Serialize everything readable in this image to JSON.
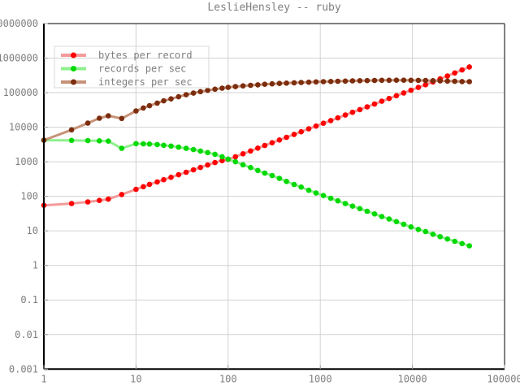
{
  "title": "LeslieHensley -- ruby",
  "background_color": "#ffffff",
  "text_color": "#7f7f7f",
  "grid_color": "#d2d2d2",
  "border_color": "#000000",
  "legend_border_color": "#d8d8d8",
  "chart_data": {
    "type": "line",
    "title": "LeslieHensley -- ruby",
    "x_scale": "log",
    "y_scale": "log",
    "xlim": [
      1,
      100000
    ],
    "ylim": [
      0.001,
      10000000
    ],
    "grid": true,
    "legend_position": "top-left",
    "x_ticks": {
      "values": [
        1,
        10,
        100,
        1000,
        10000,
        100000
      ],
      "labels": [
        "1",
        "10",
        "100",
        "1000",
        "10000",
        "100000"
      ]
    },
    "y_ticks": {
      "values": [
        0.001,
        0.01,
        0.1,
        1,
        10,
        100,
        1000,
        10000,
        100000,
        1000000,
        10000000
      ],
      "labels": [
        "0.001",
        "0.01",
        "0.1",
        "1",
        "10",
        "100",
        "1000",
        "10000",
        "100000",
        "1000000",
        "10000000"
      ]
    },
    "x": [
      1,
      2,
      3,
      4,
      5,
      7,
      10,
      12,
      14,
      17,
      20,
      24,
      29,
      35,
      42,
      50,
      60,
      72,
      86,
      100,
      120,
      145,
      175,
      210,
      250,
      300,
      360,
      430,
      520,
      620,
      750,
      900,
      1080,
      1300,
      1550,
      1870,
      2240,
      2690,
      3230,
      3880,
      4650,
      5580,
      6700,
      8040,
      9650,
      11600,
      13900,
      16700,
      20000,
      24000,
      28800,
      34600,
      41500
    ],
    "series": [
      {
        "name": "bytes per record",
        "point_color": "#ff0000",
        "line_color": "#f49a9a",
        "values": [
          55,
          62,
          69,
          76,
          83,
          113,
          160,
          190,
          222,
          262,
          303,
          355,
          420,
          497,
          585,
          685,
          805,
          950,
          1080,
          1180,
          1400,
          1700,
          2060,
          2480,
          2960,
          3560,
          4280,
          5120,
          6200,
          7400,
          9000,
          10800,
          13000,
          15600,
          18600,
          22500,
          27000,
          32400,
          39000,
          47000,
          56500,
          68000,
          81500,
          98000,
          118000,
          142000,
          170000,
          205000,
          250000,
          305000,
          372000,
          455000,
          555000
        ]
      },
      {
        "name": "records per sec",
        "point_color": "#00d900",
        "line_color": "#8ef08e",
        "values": [
          4200,
          4150,
          4100,
          4050,
          3950,
          2450,
          3350,
          3300,
          3250,
          3150,
          3000,
          2850,
          2650,
          2450,
          2250,
          2050,
          1850,
          1650,
          1400,
          1200,
          1000,
          820,
          680,
          560,
          470,
          400,
          330,
          270,
          220,
          185,
          150,
          125,
          105,
          88,
          74,
          62,
          52,
          44,
          37,
          31,
          26,
          22,
          18.5,
          15.5,
          13,
          11,
          9.5,
          8,
          6.8,
          5.8,
          5,
          4.3,
          3.7
        ]
      },
      {
        "name": "integers per sec",
        "point_color": "#7c2d0d",
        "line_color": "#c79277",
        "values": [
          4200,
          8400,
          13200,
          18200,
          21400,
          17900,
          29500,
          36000,
          42000,
          50000,
          58000,
          66000,
          76000,
          87000,
          97000,
          107000,
          117000,
          126000,
          135000,
          143000,
          150000,
          157000,
          163000,
          169000,
          175000,
          180000,
          185000,
          189000,
          193000,
          197000,
          201000,
          205000,
          208000,
          211000,
          214000,
          217000,
          220000,
          222000,
          224000,
          226000,
          228000,
          229000,
          230000,
          230000,
          229000,
          227000,
          225000,
          222000,
          219000,
          216000,
          213000,
          210000,
          208000
        ]
      }
    ]
  }
}
